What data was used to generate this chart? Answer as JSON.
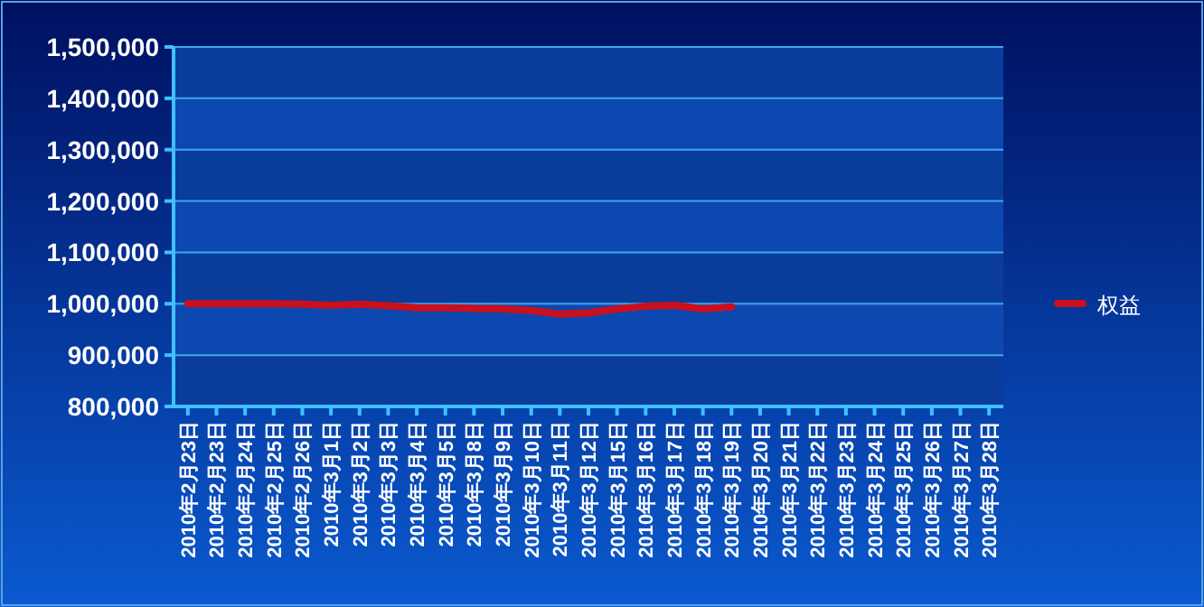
{
  "chart_data": {
    "type": "line",
    "categories": [
      "2010年2月23日",
      "2010年2月23日",
      "2010年2月24日",
      "2010年2月25日",
      "2010年2月26日",
      "2010年3月1日",
      "2010年3月2日",
      "2010年3月3日",
      "2010年3月4日",
      "2010年3月5日",
      "2010年3月8日",
      "2010年3月9日",
      "2010年3月10日",
      "2010年3月11日",
      "2010年3月12日",
      "2010年3月15日",
      "2010年3月16日",
      "2010年3月17日",
      "2010年3月18日",
      "2010年3月19日",
      "2010年3月20日",
      "2010年3月21日",
      "2010年3月22日",
      "2010年3月23日",
      "2010年3月24日",
      "2010年3月25日",
      "2010年3月26日",
      "2010年3月27日",
      "2010年3月28日"
    ],
    "series": [
      {
        "name": "权益",
        "color": "#c8101e",
        "values": [
          1000000,
          1000000,
          1000000,
          1000000,
          999000,
          997000,
          999000,
          996000,
          992000,
          992000,
          991000,
          990000,
          987000,
          980000,
          982000,
          990000,
          995000,
          997000,
          990000,
          994000,
          null,
          null,
          null,
          null,
          null,
          null,
          null,
          null,
          null
        ]
      }
    ],
    "ylim": [
      800000,
      1500000
    ],
    "yticks": [
      {
        "value": 800000,
        "label": "800,000"
      },
      {
        "value": 900000,
        "label": "900,000"
      },
      {
        "value": 1000000,
        "label": "1,000,000"
      },
      {
        "value": 1100000,
        "label": "1,100,000"
      },
      {
        "value": 1200000,
        "label": "1,200,000"
      },
      {
        "value": 1300000,
        "label": "1,300,000"
      },
      {
        "value": 1400000,
        "label": "1,400,000"
      },
      {
        "value": 1500000,
        "label": "1,500,000"
      }
    ],
    "grid": "y",
    "legend": "right",
    "marker": "none",
    "line_style": "solid"
  }
}
